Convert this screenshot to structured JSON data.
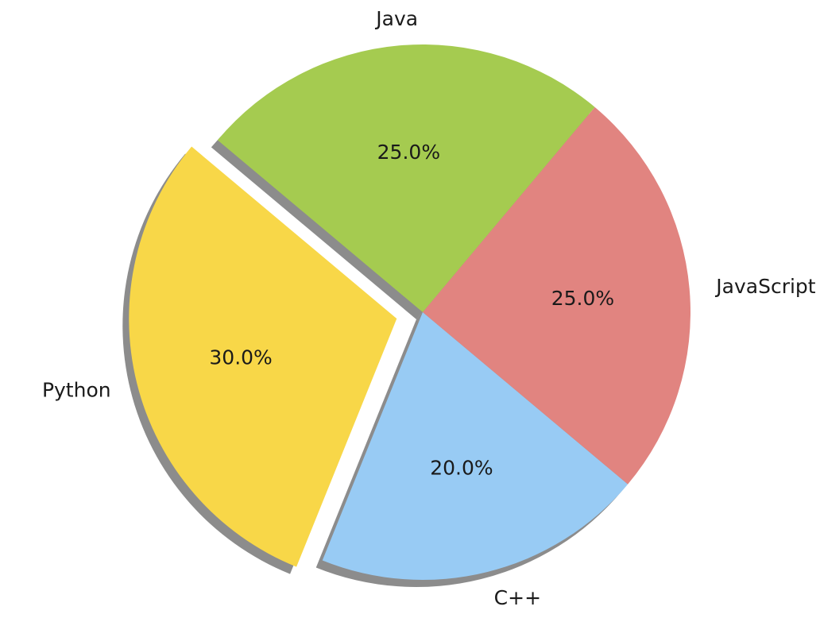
{
  "chart_data": {
    "type": "pie",
    "categories": [
      "Python",
      "C++",
      "JavaScript",
      "Java"
    ],
    "values": [
      30,
      20,
      25,
      25
    ],
    "percent_labels": [
      "30.0%",
      "20.0%",
      "25.0%",
      "25.0%"
    ],
    "colors": [
      "#f8d748",
      "#98cbf4",
      "#e18480",
      "#a5cb50"
    ],
    "explode": [
      0.1,
      0,
      0,
      0
    ],
    "start_angle_deg": 140,
    "direction": "counterclockwise",
    "shadow": true,
    "title": "",
    "legend": "none"
  }
}
